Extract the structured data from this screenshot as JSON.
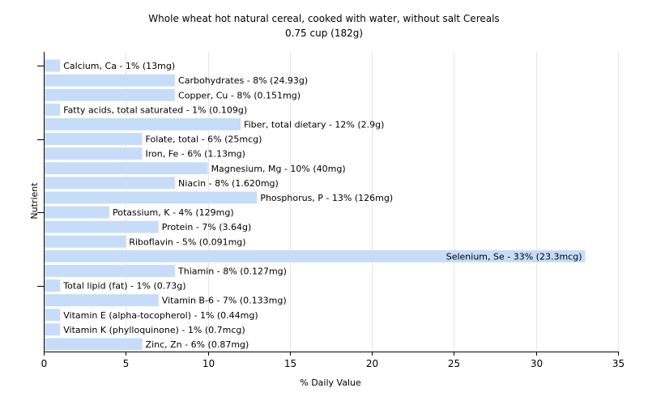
{
  "chart_data": {
    "type": "bar",
    "orientation": "horizontal",
    "title": "Whole wheat hot natural cereal, cooked with water, without salt Cereals",
    "subtitle": "0.75 cup (182g)",
    "xlabel": "% Daily Value",
    "ylabel": "Nutrient",
    "xlim": [
      0,
      35
    ],
    "xticks": [
      "0",
      "5",
      "10",
      "15",
      "20",
      "25",
      "30",
      "35"
    ],
    "grid": true,
    "bar_color": "#c6dcf8",
    "categories": [
      "Calcium, Ca",
      "Carbohydrates",
      "Copper, Cu",
      "Fatty acids, total saturated",
      "Fiber, total dietary",
      "Folate, total",
      "Iron, Fe",
      "Magnesium, Mg",
      "Niacin",
      "Phosphorus, P",
      "Potassium, K",
      "Protein",
      "Riboflavin",
      "Selenium, Se",
      "Thiamin",
      "Total lipid (fat)",
      "Vitamin B-6",
      "Vitamin E (alpha-tocopherol)",
      "Vitamin K (phylloquinone)",
      "Zinc, Zn"
    ],
    "values": [
      1,
      8,
      8,
      1,
      12,
      6,
      6,
      10,
      8,
      13,
      4,
      7,
      5,
      33,
      8,
      1,
      7,
      1,
      1,
      6
    ],
    "labels": [
      "Calcium, Ca - 1% (13mg)",
      "Carbohydrates - 8% (24.93g)",
      "Copper, Cu - 8% (0.151mg)",
      "Fatty acids, total saturated - 1% (0.109g)",
      "Fiber, total dietary - 12% (2.9g)",
      "Folate, total - 6% (25mcg)",
      "Iron, Fe - 6% (1.13mg)",
      "Magnesium, Mg - 10% (40mg)",
      "Niacin - 8% (1.620mg)",
      "Phosphorus, P - 13% (126mg)",
      "Potassium, K - 4% (129mg)",
      "Protein - 7% (3.64g)",
      "Riboflavin - 5% (0.091mg)",
      "Selenium, Se - 33% (23.3mcg)",
      "Thiamin - 8% (0.127mg)",
      "Total lipid (fat) - 1% (0.73g)",
      "Vitamin B-6 - 7% (0.133mg)",
      "Vitamin E (alpha-tocopherol) - 1% (0.44mg)",
      "Vitamin K (phylloquinone) - 1% (0.7mcg)",
      "Zinc, Zn - 6% (0.87mg)"
    ]
  }
}
